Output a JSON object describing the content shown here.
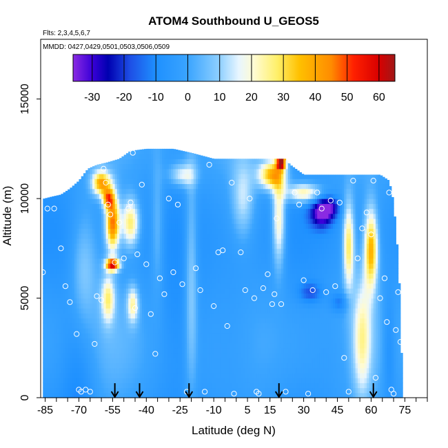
{
  "chart_data": {
    "type": "heatmap",
    "title": "ATOM4 Southbound U_GEOS5",
    "flights_label": "Flts: 2,3,4,5,6,7",
    "dates_label": "MMDD: 0427,0429,0501,0503,0506,0509",
    "xlabel": "Latitude (deg N)",
    "ylabel": "Altitude (m)",
    "xlim": [
      -87,
      85
    ],
    "ylim": [
      0,
      18000
    ],
    "x_ticks": [
      -85,
      -70,
      -55,
      -40,
      -25,
      -10,
      5,
      15,
      30,
      45,
      60,
      75
    ],
    "x_minor_ticks": [
      -80,
      -75,
      -65,
      -60,
      -50,
      -45,
      -35,
      -30,
      -20,
      -15,
      -5,
      0,
      10,
      20,
      25,
      35,
      40,
      50,
      55,
      65,
      70,
      80,
      85
    ],
    "y_ticks": [
      0,
      5000,
      10000,
      15000
    ],
    "colorbar": {
      "ticks": [
        -30,
        -20,
        -10,
        0,
        10,
        20,
        30,
        40,
        50,
        60
      ],
      "range": [
        -36,
        65
      ],
      "stops": [
        {
          "v": -36,
          "color": "#8a2be2"
        },
        {
          "v": -30,
          "color": "#3a00d8"
        },
        {
          "v": -25,
          "color": "#0000b0"
        },
        {
          "v": -18,
          "color": "#1e50e6"
        },
        {
          "v": -10,
          "color": "#1e90ff"
        },
        {
          "v": 0,
          "color": "#3aa4ff"
        },
        {
          "v": 10,
          "color": "#8fd0ff"
        },
        {
          "v": 16,
          "color": "#e8f6ff"
        },
        {
          "v": 21,
          "color": "#fffbd0"
        },
        {
          "v": 28,
          "color": "#fff06a"
        },
        {
          "v": 35,
          "color": "#ffc000"
        },
        {
          "v": 45,
          "color": "#ff8c00"
        },
        {
          "v": 52,
          "color": "#ff2000"
        },
        {
          "v": 60,
          "color": "#d80000"
        },
        {
          "v": 65,
          "color": "#a01818"
        }
      ]
    },
    "coverage": [
      {
        "lat": -85.5,
        "alt_top": 10000
      },
      {
        "lat": -82,
        "alt_top": 10100
      },
      {
        "lat": -78,
        "alt_top": 10200
      },
      {
        "lat": -74,
        "alt_top": 10500
      },
      {
        "lat": -70,
        "alt_top": 10900
      },
      {
        "lat": -66,
        "alt_top": 11500
      },
      {
        "lat": -62,
        "alt_top": 11700
      },
      {
        "lat": -58,
        "alt_top": 11800
      },
      {
        "lat": -52,
        "alt_top": 12000
      },
      {
        "lat": -47,
        "alt_top": 12400
      },
      {
        "lat": -40,
        "alt_top": 12500
      },
      {
        "lat": -28,
        "alt_top": 12500
      },
      {
        "lat": -20,
        "alt_top": 12300
      },
      {
        "lat": -10,
        "alt_top": 12000
      },
      {
        "lat": 0,
        "alt_top": 12000
      },
      {
        "lat": 10,
        "alt_top": 12000
      },
      {
        "lat": 16,
        "alt_top": 12000
      },
      {
        "lat": 22,
        "alt_top": 12000
      },
      {
        "lat": 24,
        "alt_top": 11700
      },
      {
        "lat": 30,
        "alt_top": 11200
      },
      {
        "lat": 40,
        "alt_top": 11200
      },
      {
        "lat": 50,
        "alt_top": 11200
      },
      {
        "lat": 58,
        "alt_top": 11200
      },
      {
        "lat": 64,
        "alt_top": 11200
      },
      {
        "lat": 68,
        "alt_top": 10900
      },
      {
        "lat": 70,
        "alt_top": 9800
      },
      {
        "lat": 72,
        "alt_top": 7000
      },
      {
        "lat": 73,
        "alt_top": 4500
      },
      {
        "lat": 74,
        "alt_top": 0
      }
    ],
    "field": {
      "background": -2,
      "features": [
        {
          "lat": -70,
          "alt": 1500,
          "dlat": 8,
          "dalt": 5000,
          "u": -12
        },
        {
          "lat": -68,
          "alt": 6500,
          "dlat": 6,
          "dalt": 3000,
          "u": 12
        },
        {
          "lat": -60,
          "alt": 10800,
          "dlat": 4,
          "dalt": 600,
          "u": 40
        },
        {
          "lat": -57,
          "alt": 10000,
          "dlat": 2.5,
          "dalt": 500,
          "u": 35
        },
        {
          "lat": -55,
          "alt": 8800,
          "dlat": 3,
          "dalt": 1400,
          "u": 48
        },
        {
          "lat": -47,
          "alt": 8800,
          "dlat": 4,
          "dalt": 1200,
          "u": 30
        },
        {
          "lat": -55,
          "alt": 6700,
          "dlat": 3,
          "dalt": 300,
          "u": 56
        },
        {
          "lat": -57,
          "alt": 5000,
          "dlat": 3,
          "dalt": 1200,
          "u": 24
        },
        {
          "lat": -46,
          "alt": 4700,
          "dlat": 2.5,
          "dalt": 900,
          "u": 22
        },
        {
          "lat": -35,
          "alt": 8500,
          "dlat": 3,
          "dalt": 3500,
          "u": 10
        },
        {
          "lat": -20,
          "alt": 6000,
          "dlat": 3,
          "dalt": 6000,
          "u": 14
        },
        {
          "lat": -24,
          "alt": 11200,
          "dlat": 6,
          "dalt": 600,
          "u": 18
        },
        {
          "lat": -25,
          "alt": 3500,
          "dlat": 12,
          "dalt": 3500,
          "u": -8
        },
        {
          "lat": -2,
          "alt": 3000,
          "dlat": 12,
          "dalt": 4000,
          "u": -9
        },
        {
          "lat": 3,
          "alt": 10000,
          "dlat": 5,
          "dalt": 2000,
          "u": 14
        },
        {
          "lat": 16,
          "alt": 11200,
          "dlat": 6,
          "dalt": 700,
          "u": 38
        },
        {
          "lat": 20,
          "alt": 11800,
          "dlat": 2,
          "dalt": 300,
          "u": 58
        },
        {
          "lat": 19,
          "alt": 9000,
          "dlat": 3,
          "dalt": 2500,
          "u": 26
        },
        {
          "lat": 30,
          "alt": 10300,
          "dlat": 8,
          "dalt": 500,
          "u": 28
        },
        {
          "lat": 38,
          "alt": 9300,
          "dlat": 5,
          "dalt": 700,
          "u": -34
        },
        {
          "lat": 42,
          "alt": 9600,
          "dlat": 4,
          "dalt": 500,
          "u": -20
        },
        {
          "lat": 33,
          "alt": 5300,
          "dlat": 5,
          "dalt": 500,
          "u": -16
        },
        {
          "lat": 46,
          "alt": 4800,
          "dlat": 4,
          "dalt": 500,
          "u": -14
        },
        {
          "lat": 50,
          "alt": 7700,
          "dlat": 2.5,
          "dalt": 2200,
          "u": 30
        },
        {
          "lat": 60,
          "alt": 7500,
          "dlat": 3,
          "dalt": 2000,
          "u": 38
        },
        {
          "lat": 56,
          "alt": 3000,
          "dlat": 4,
          "dalt": 3000,
          "u": 20
        },
        {
          "lat": 68,
          "alt": 2500,
          "dlat": 3,
          "dalt": 3000,
          "u": -12
        },
        {
          "lat": 44,
          "alt": 2500,
          "dlat": 10,
          "dalt": 2500,
          "u": -6
        }
      ]
    },
    "flight_points": [
      [
        -86,
        6300
      ],
      [
        -84,
        9500
      ],
      [
        -81,
        9500
      ],
      [
        -78,
        7500
      ],
      [
        -76,
        5600
      ],
      [
        -74,
        4800
      ],
      [
        -71,
        3200
      ],
      [
        -70,
        400
      ],
      [
        -69,
        300
      ],
      [
        -67,
        400
      ],
      [
        -65,
        300
      ],
      [
        -63,
        2700
      ],
      [
        -62,
        5100
      ],
      [
        -60,
        4900
      ],
      [
        -59,
        11500
      ],
      [
        -58,
        10800
      ],
      [
        -57,
        9700
      ],
      [
        -56,
        9200
      ],
      [
        -54,
        6800
      ],
      [
        -52,
        8800
      ],
      [
        -50,
        7000
      ],
      [
        -48,
        9500
      ],
      [
        -47,
        9800
      ],
      [
        -46,
        12300
      ],
      [
        -45,
        4500
      ],
      [
        -44,
        7200
      ],
      [
        -42,
        10700
      ],
      [
        -40,
        6700
      ],
      [
        -38,
        4200
      ],
      [
        -36,
        2200
      ],
      [
        -34,
        6000
      ],
      [
        -32,
        5200
      ],
      [
        -30,
        10000
      ],
      [
        -28,
        6300
      ],
      [
        -26,
        9700
      ],
      [
        -24,
        5700
      ],
      [
        -22,
        300
      ],
      [
        -20,
        12700
      ],
      [
        -18,
        6500
      ],
      [
        -16,
        5400
      ],
      [
        -14,
        300
      ],
      [
        -12,
        11700
      ],
      [
        -10,
        4600
      ],
      [
        -8,
        7300
      ],
      [
        -6,
        7400
      ],
      [
        -4,
        3600
      ],
      [
        -2,
        10800
      ],
      [
        -1,
        200
      ],
      [
        2,
        7300
      ],
      [
        4,
        5400
      ],
      [
        6,
        10000
      ],
      [
        8,
        5000
      ],
      [
        9,
        300
      ],
      [
        10,
        200
      ],
      [
        12,
        5500
      ],
      [
        14,
        6200
      ],
      [
        16,
        4700
      ],
      [
        17,
        5200
      ],
      [
        18,
        9000
      ],
      [
        20,
        4700
      ],
      [
        22,
        300
      ],
      [
        24,
        11900
      ],
      [
        26,
        10300
      ],
      [
        28,
        9700
      ],
      [
        30,
        5900
      ],
      [
        32,
        200
      ],
      [
        34,
        5400
      ],
      [
        36,
        10300
      ],
      [
        38,
        9500
      ],
      [
        40,
        5300
      ],
      [
        42,
        9900
      ],
      [
        44,
        5600
      ],
      [
        46,
        9800
      ],
      [
        48,
        2000
      ],
      [
        50,
        300
      ],
      [
        52,
        10900
      ],
      [
        54,
        7000
      ],
      [
        56,
        8500
      ],
      [
        58,
        9300
      ],
      [
        60,
        8200
      ],
      [
        61,
        10900
      ],
      [
        62,
        1000
      ],
      [
        64,
        5000
      ],
      [
        66,
        6000
      ],
      [
        67,
        3800
      ],
      [
        68,
        10300
      ],
      [
        69,
        400
      ],
      [
        70,
        200
      ],
      [
        71,
        3400
      ],
      [
        72,
        5300
      ],
      [
        73,
        2800
      ]
    ],
    "flight_markers": [
      -54,
      -43,
      -21,
      19,
      61
    ]
  }
}
